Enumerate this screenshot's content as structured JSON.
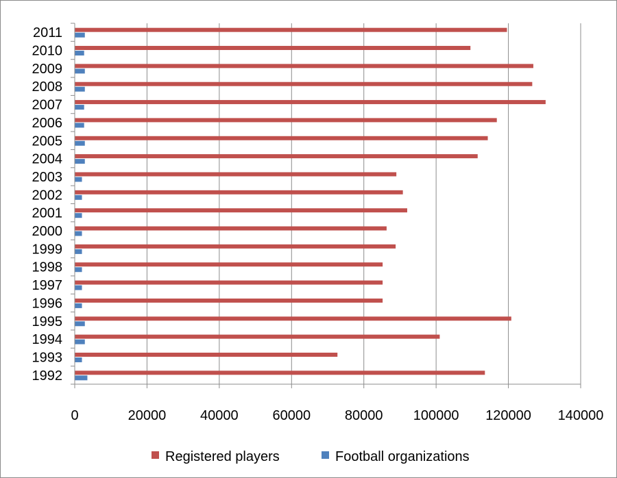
{
  "chart_data": {
    "type": "bar",
    "orientation": "horizontal",
    "title": "",
    "xlabel": "",
    "ylabel": "",
    "categories": [
      "1992",
      "1993",
      "1994",
      "1995",
      "1996",
      "1997",
      "1998",
      "1999",
      "2000",
      "2001",
      "2002",
      "2003",
      "2004",
      "2005",
      "2006",
      "2007",
      "2008",
      "2009",
      "2010",
      "2011"
    ],
    "series": [
      {
        "name": "Registered players",
        "color": "#c0504d",
        "values": [
          113500,
          72700,
          101000,
          120800,
          85200,
          85200,
          85200,
          88800,
          86300,
          92000,
          90800,
          89000,
          111500,
          114300,
          116800,
          130300,
          126600,
          126900,
          109500,
          119600
        ]
      },
      {
        "name": "Football organizations",
        "color": "#4f81bd",
        "values": [
          3500,
          2000,
          2800,
          2800,
          2000,
          2000,
          2000,
          2000,
          2000,
          2000,
          2000,
          2000,
          2800,
          2800,
          2600,
          2600,
          2800,
          2800,
          2600,
          2800
        ]
      }
    ],
    "xlim": [
      0,
      140000
    ],
    "xticks": [
      "0",
      "20000",
      "40000",
      "60000",
      "80000",
      "100000",
      "120000",
      "140000"
    ],
    "grid": "vertical",
    "legend_position": "bottom"
  }
}
